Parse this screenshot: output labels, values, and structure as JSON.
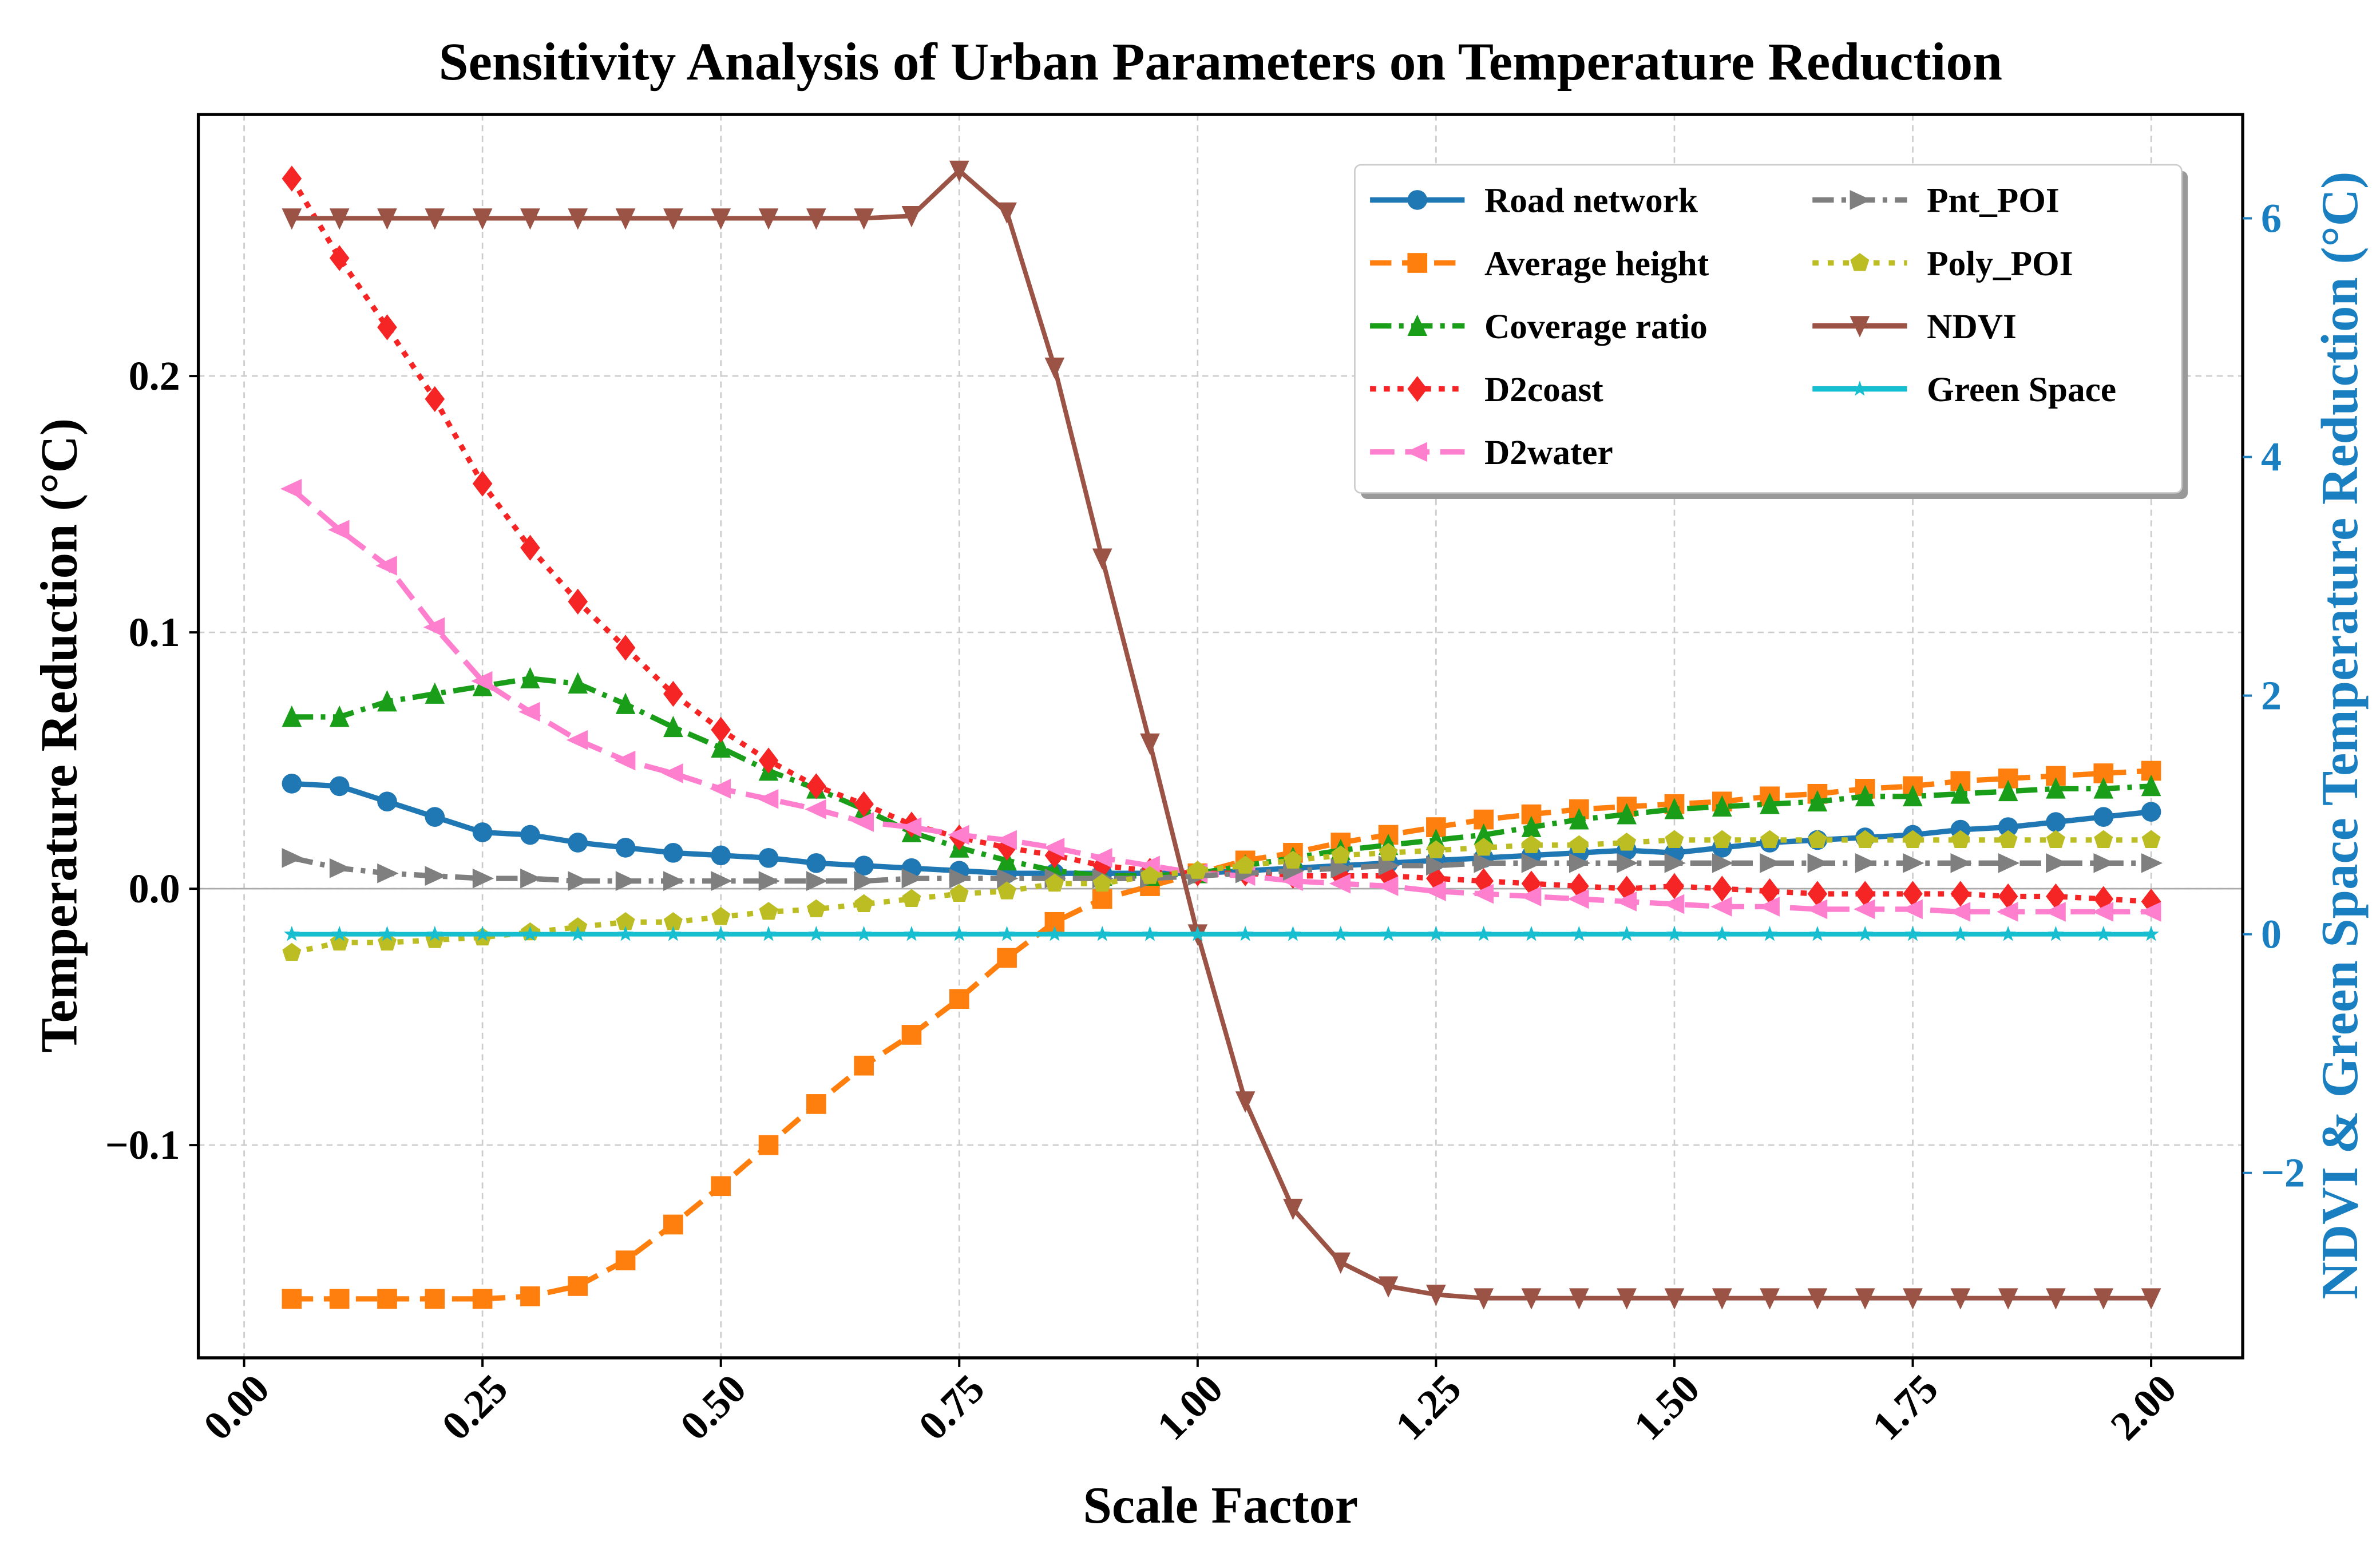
{
  "chart_data": {
    "type": "line",
    "title": "Sensitivity Analysis of Urban Parameters on Temperature Reduction",
    "xlabel": "Scale Factor",
    "ylabel": "Temperature Reduction (°C)",
    "y2label": "NDVI & Green Space Temperature Reduction (°C)",
    "xlim": [
      -0.048,
      2.096
    ],
    "ylim": [
      -0.183,
      0.302
    ],
    "y2lim": [
      -3.55,
      6.87
    ],
    "xticks": [
      "0.00",
      "0.25",
      "0.50",
      "0.75",
      "1.00",
      "1.25",
      "1.50",
      "1.75",
      "2.00"
    ],
    "xtick_values": [
      0,
      0.25,
      0.5,
      0.75,
      1,
      1.25,
      1.5,
      1.75,
      2
    ],
    "yticks": [
      "0.2",
      "0.1",
      "0.0",
      "−0.1"
    ],
    "ytick_values": [
      0.2,
      0.1,
      0,
      -0.1
    ],
    "y2ticks": [
      "6",
      "4",
      "2",
      "0",
      "−2"
    ],
    "y2tick_values": [
      6,
      4,
      2,
      0,
      -2
    ],
    "y2_color": "#1a7fc0",
    "grid": true,
    "legend_placement": "top-right",
    "x": [
      0.05,
      0.1,
      0.15,
      0.2,
      0.25,
      0.3,
      0.35,
      0.4,
      0.45,
      0.5,
      0.55,
      0.6,
      0.65,
      0.7,
      0.75,
      0.8,
      0.85,
      0.9,
      0.95,
      1.0,
      1.05,
      1.1,
      1.15,
      1.2,
      1.25,
      1.3,
      1.35,
      1.4,
      1.45,
      1.5,
      1.55,
      1.6,
      1.65,
      1.7,
      1.75,
      1.8,
      1.85,
      1.9,
      1.95,
      2.0
    ],
    "series": [
      {
        "name": "Road network",
        "axis": "left",
        "color": "#1f77b4",
        "dash": "",
        "marker": "circle",
        "values": [
          0.041,
          0.04,
          0.034,
          0.028,
          0.022,
          0.021,
          0.018,
          0.016,
          0.014,
          0.013,
          0.012,
          0.01,
          0.009,
          0.008,
          0.007,
          0.006,
          0.006,
          0.006,
          0.006,
          0.006,
          0.007,
          0.008,
          0.009,
          0.01,
          0.011,
          0.012,
          0.013,
          0.014,
          0.015,
          0.014,
          0.016,
          0.018,
          0.019,
          0.02,
          0.021,
          0.023,
          0.024,
          0.026,
          0.028,
          0.03
        ]
      },
      {
        "name": "Average height",
        "axis": "left",
        "color": "#ff7f0e",
        "dash": "14,7",
        "marker": "square",
        "values": [
          -0.16,
          -0.16,
          -0.16,
          -0.16,
          -0.16,
          -0.159,
          -0.155,
          -0.145,
          -0.131,
          -0.116,
          -0.1,
          -0.084,
          -0.069,
          -0.057,
          -0.043,
          -0.027,
          -0.013,
          -0.004,
          0.001,
          0.006,
          0.011,
          0.014,
          0.018,
          0.021,
          0.024,
          0.027,
          0.029,
          0.031,
          0.032,
          0.033,
          0.034,
          0.036,
          0.037,
          0.039,
          0.04,
          0.042,
          0.043,
          0.044,
          0.045,
          0.046
        ]
      },
      {
        "name": "Coverage ratio",
        "axis": "left",
        "color": "#1a9e1a",
        "dash": "14,5,3,5",
        "marker": "triangle-up",
        "values": [
          0.067,
          0.067,
          0.073,
          0.076,
          0.079,
          0.082,
          0.08,
          0.072,
          0.063,
          0.055,
          0.046,
          0.039,
          0.031,
          0.022,
          0.016,
          0.011,
          0.007,
          0.005,
          0.005,
          0.006,
          0.009,
          0.012,
          0.015,
          0.017,
          0.019,
          0.021,
          0.024,
          0.027,
          0.029,
          0.031,
          0.032,
          0.033,
          0.034,
          0.036,
          0.036,
          0.037,
          0.038,
          0.039,
          0.039,
          0.04
        ]
      },
      {
        "name": "D2coast",
        "axis": "left",
        "color": "#f52525",
        "dash": "4,5",
        "marker": "diamond",
        "values": [
          0.277,
          0.246,
          0.219,
          0.191,
          0.158,
          0.133,
          0.112,
          0.094,
          0.076,
          0.062,
          0.05,
          0.04,
          0.033,
          0.025,
          0.02,
          0.016,
          0.013,
          0.009,
          0.007,
          0.006,
          0.006,
          0.005,
          0.005,
          0.005,
          0.004,
          0.003,
          0.002,
          0.001,
          0.0,
          0.001,
          0.0,
          -0.001,
          -0.002,
          -0.002,
          -0.002,
          -0.002,
          -0.003,
          -0.003,
          -0.004,
          -0.005
        ]
      },
      {
        "name": "D2water",
        "axis": "left",
        "color": "#ff7fcf",
        "dash": "16,7",
        "marker": "triangle-left",
        "values": [
          0.156,
          0.14,
          0.126,
          0.102,
          0.081,
          0.069,
          0.058,
          0.05,
          0.045,
          0.039,
          0.035,
          0.031,
          0.026,
          0.024,
          0.021,
          0.019,
          0.016,
          0.012,
          0.009,
          0.006,
          0.005,
          0.003,
          0.002,
          0.001,
          -0.001,
          -0.002,
          -0.003,
          -0.004,
          -0.005,
          -0.006,
          -0.007,
          -0.007,
          -0.008,
          -0.008,
          -0.008,
          -0.009,
          -0.009,
          -0.009,
          -0.009,
          -0.009
        ]
      },
      {
        "name": "Pnt_POI",
        "axis": "left",
        "color": "#7f7f7f",
        "dash": "14,5,3,5",
        "marker": "triangle-right",
        "values": [
          0.012,
          0.008,
          0.006,
          0.005,
          0.004,
          0.004,
          0.003,
          0.003,
          0.003,
          0.003,
          0.003,
          0.003,
          0.003,
          0.004,
          0.004,
          0.004,
          0.004,
          0.004,
          0.004,
          0.005,
          0.006,
          0.007,
          0.008,
          0.009,
          0.009,
          0.01,
          0.01,
          0.01,
          0.01,
          0.01,
          0.01,
          0.01,
          0.01,
          0.01,
          0.01,
          0.01,
          0.01,
          0.01,
          0.01,
          0.01
        ]
      },
      {
        "name": "Poly_POI",
        "axis": "left",
        "color": "#bcbd22",
        "dash": "4,6",
        "marker": "pentagon",
        "values": [
          -0.025,
          -0.021,
          -0.021,
          -0.02,
          -0.019,
          -0.017,
          -0.015,
          -0.013,
          -0.013,
          -0.011,
          -0.009,
          -0.008,
          -0.006,
          -0.004,
          -0.002,
          -0.001,
          0.002,
          0.002,
          0.005,
          0.007,
          0.009,
          0.011,
          0.013,
          0.014,
          0.015,
          0.016,
          0.017,
          0.017,
          0.018,
          0.019,
          0.019,
          0.019,
          0.019,
          0.019,
          0.019,
          0.019,
          0.019,
          0.019,
          0.019,
          0.019
        ]
      },
      {
        "name": "NDVI",
        "axis": "right",
        "color": "#9b5345",
        "dash": "",
        "marker": "triangle-down",
        "values": [
          6,
          6,
          6,
          6,
          6,
          6,
          6,
          6,
          6,
          6,
          6,
          6,
          6,
          6.02,
          6.4,
          6.05,
          4.75,
          3.15,
          1.6,
          0.0,
          -1.4,
          -2.3,
          -2.75,
          -2.95,
          -3.02,
          -3.05,
          -3.05,
          -3.05,
          -3.05,
          -3.05,
          -3.05,
          -3.05,
          -3.05,
          -3.05,
          -3.05,
          -3.05,
          -3.05,
          -3.05,
          -3.05,
          -3.05
        ]
      },
      {
        "name": "Green Space",
        "axis": "right",
        "color": "#17becf",
        "dash": "",
        "marker": "star",
        "values": [
          0,
          0,
          0,
          0,
          0,
          0,
          0,
          0,
          0,
          0,
          0,
          0,
          0,
          0,
          0,
          0,
          0,
          0,
          0,
          0,
          0,
          0,
          0,
          0,
          0,
          0,
          0,
          0,
          0,
          0,
          0,
          0,
          0,
          0,
          0,
          0,
          0,
          0,
          0,
          0
        ]
      }
    ]
  }
}
